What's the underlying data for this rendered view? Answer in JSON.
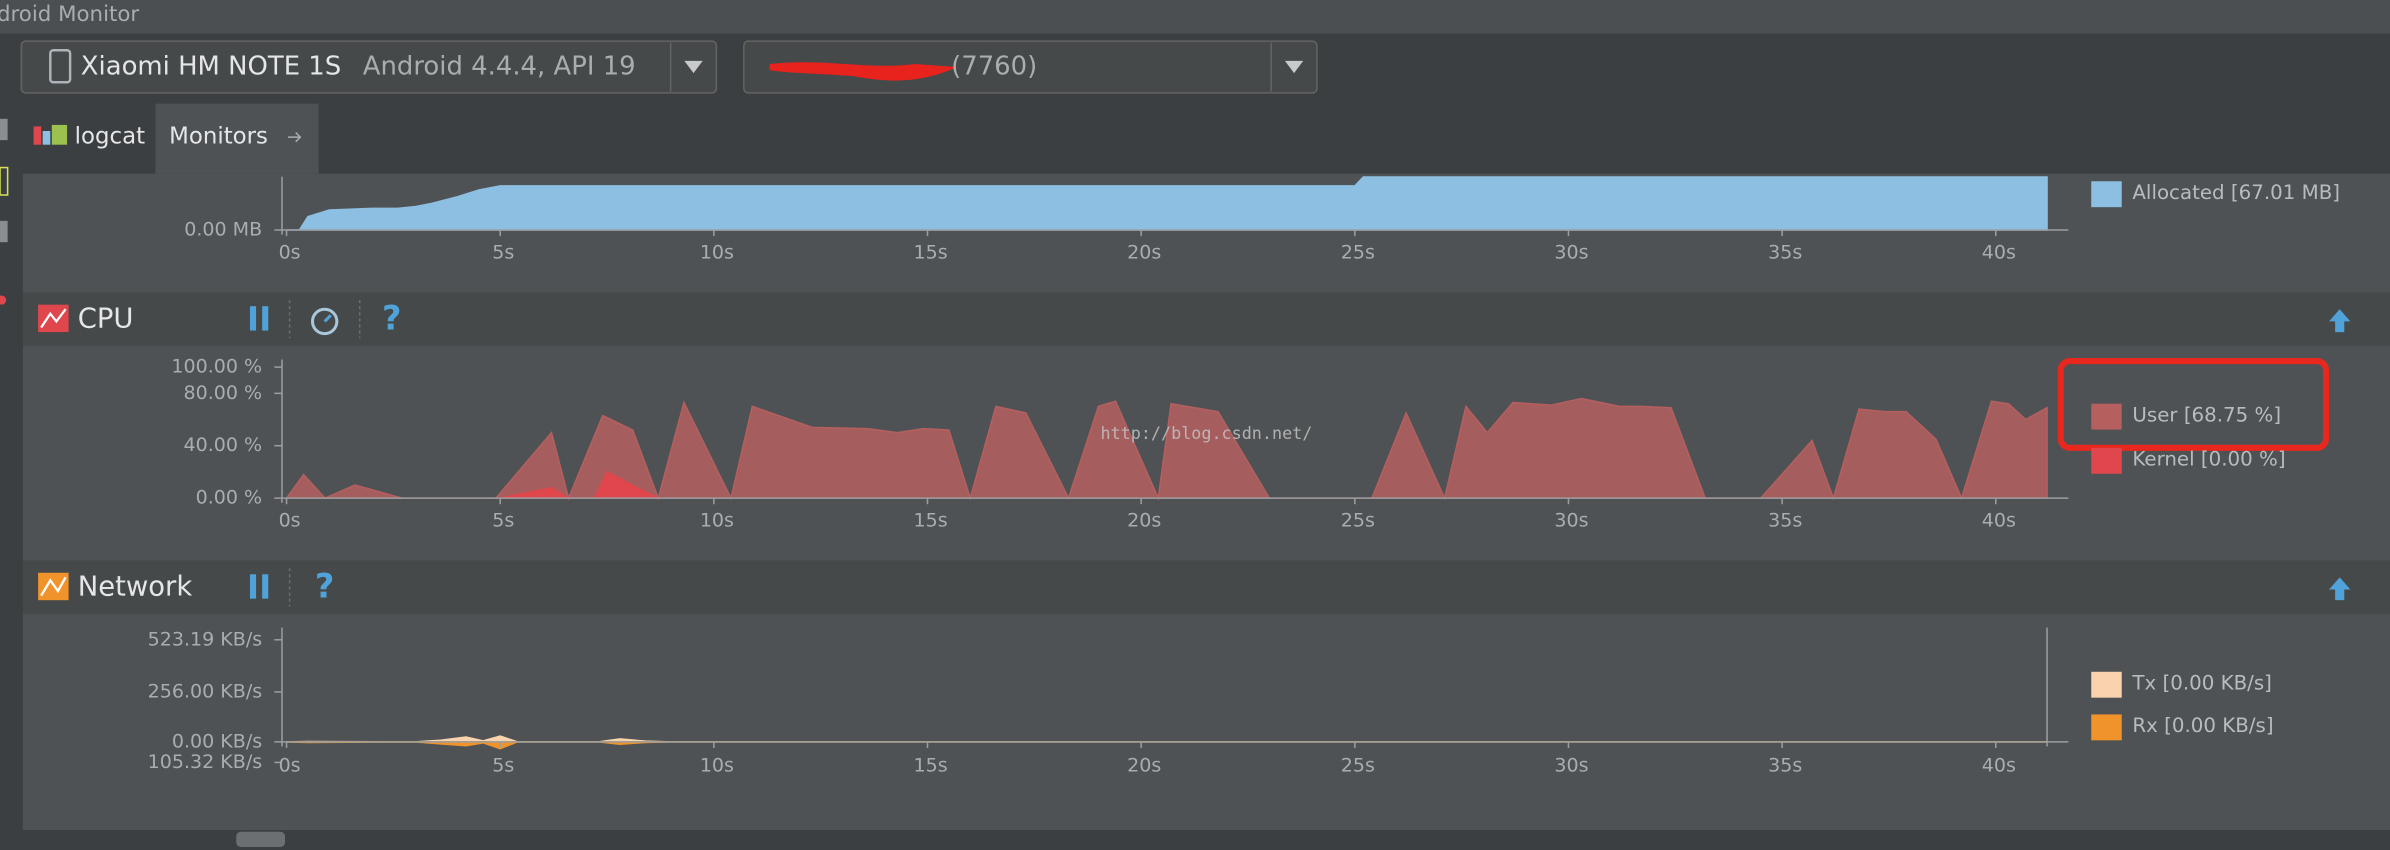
{
  "window_title": "droid Monitor",
  "device": "Xiaomi HM NOTE 1S",
  "device_detail": "Android 4.4.4, API 19",
  "process": "(7760)",
  "tabs": [
    "logcat",
    "Monitors"
  ],
  "help": "?",
  "watermark": "http://blog.csdn.net/",
  "chart_data": [
    {
      "type": "area",
      "xlim": [
        0,
        41.2
      ],
      "xticks": [
        {
          "value": 0,
          "label": "0s"
        },
        {
          "value": 5,
          "label": "5s"
        },
        {
          "value": 10,
          "label": "10s"
        },
        {
          "value": 15,
          "label": "15s"
        },
        {
          "value": 20,
          "label": "20s"
        },
        {
          "value": 25,
          "label": "25s"
        },
        {
          "value": 30,
          "label": "30s"
        },
        {
          "value": 35,
          "label": "35s"
        },
        {
          "value": 40,
          "label": "40s"
        }
      ],
      "ylim": [
        0,
        32
      ],
      "yticks": [
        {
          "value": 0,
          "label": "0.00 MB"
        }
      ],
      "series": [
        {
          "name": "Allocated [67.01 MB]",
          "color": "#8dbfe2",
          "x": [
            0,
            0.3,
            0.5,
            1,
            2,
            2.6,
            3,
            3.4,
            4,
            4.5,
            5,
            10,
            20,
            25,
            25.2,
            41.2
          ],
          "values": [
            0,
            0,
            8,
            12,
            13,
            13,
            14,
            16,
            20,
            24,
            26.5,
            26.5,
            26.5,
            26.5,
            31.8,
            31.8
          ]
        }
      ]
    },
    {
      "type": "area",
      "title": "CPU",
      "xlim": [
        0,
        41.2
      ],
      "xticks": [
        {
          "value": 0,
          "label": "0s"
        },
        {
          "value": 5,
          "label": "5s"
        },
        {
          "value": 10,
          "label": "10s"
        },
        {
          "value": 15,
          "label": "15s"
        },
        {
          "value": 20,
          "label": "20s"
        },
        {
          "value": 25,
          "label": "25s"
        },
        {
          "value": 30,
          "label": "30s"
        },
        {
          "value": 35,
          "label": "35s"
        },
        {
          "value": 40,
          "label": "40s"
        }
      ],
      "ylim": [
        0,
        100
      ],
      "yticks": [
        {
          "value": 100,
          "label": "100.00 %"
        },
        {
          "value": 80,
          "label": "80.00 %"
        },
        {
          "value": 40,
          "label": "40.00 %"
        },
        {
          "value": 0,
          "label": "0.00 %"
        }
      ],
      "series": [
        {
          "name": "User [68.75 %]",
          "color": "#b55f5f",
          "x": [
            0,
            0.4,
            0.9,
            1.6,
            2.7,
            4.9,
            6.2,
            6.6,
            7.4,
            8.1,
            8.7,
            9.3,
            10.4,
            10.9,
            12.3,
            13.6,
            14.3,
            14.9,
            15.5,
            16,
            16.6,
            17.3,
            18.3,
            19,
            19.4,
            20.4,
            20.7,
            21.8,
            23,
            25.4,
            26.2,
            27.1,
            27.6,
            28.1,
            28.7,
            29.6,
            30.3,
            31.2,
            31.7,
            32.4,
            33.2,
            34.5,
            35.7,
            36.2,
            36.8,
            37.4,
            37.9,
            38.6,
            39.2,
            39.9,
            40.3,
            40.7,
            41.2
          ],
          "values": [
            0,
            18,
            0,
            10,
            0,
            0,
            50,
            0,
            63,
            52,
            0,
            73,
            0,
            70,
            54,
            53,
            50,
            53,
            52,
            0,
            70,
            65,
            0,
            70,
            74,
            0,
            72,
            66,
            0,
            0,
            65,
            0,
            70,
            50,
            73,
            71,
            76,
            70,
            70,
            69,
            0,
            0,
            44,
            0,
            68,
            66,
            66,
            45,
            0,
            74,
            72,
            60,
            69
          ]
        },
        {
          "name": "Kernel [0.00 %]",
          "color": "#e0474c",
          "x": [
            5,
            6.2,
            6.6,
            7.2,
            7.5,
            8.2,
            8.7
          ],
          "values": [
            0,
            8,
            0,
            0,
            20,
            8,
            0
          ]
        }
      ]
    },
    {
      "type": "area",
      "title": "Network",
      "xlim": [
        0,
        41.2
      ],
      "xticks": [
        {
          "value": 0,
          "label": "0s"
        },
        {
          "value": 5,
          "label": "5s"
        },
        {
          "value": 10,
          "label": "10s"
        },
        {
          "value": 15,
          "label": "15s"
        },
        {
          "value": 20,
          "label": "20s"
        },
        {
          "value": 25,
          "label": "25s"
        },
        {
          "value": 30,
          "label": "30s"
        },
        {
          "value": 35,
          "label": "35s"
        },
        {
          "value": 40,
          "label": "40s"
        }
      ],
      "ylim": [
        -105.32,
        523.19
      ],
      "yticks": [
        {
          "value": 523.19,
          "label": "523.19 KB/s"
        },
        {
          "value": 256,
          "label": "256.00 KB/s"
        },
        {
          "value": 0,
          "label": "0.00 KB/s"
        },
        {
          "value": -105.32,
          "label": "105.32 KB/s"
        }
      ],
      "series": [
        {
          "name": "Tx [0.00 KB/s]",
          "color": "#f8d3ad",
          "x": [
            0,
            0.5,
            3,
            3.6,
            4.2,
            4.6,
            5,
            5.4,
            7.3,
            7.8,
            8.4,
            9,
            41.2
          ],
          "values": [
            0,
            2,
            0,
            8,
            25,
            5,
            30,
            0,
            0,
            15,
            4,
            0,
            0
          ]
        },
        {
          "name": "Rx [0.00 KB/s]",
          "color": "#f0932b",
          "x": [
            0,
            0.5,
            3,
            3.6,
            4.2,
            4.6,
            5,
            5.4,
            7.3,
            7.8,
            8.4,
            9,
            41.2
          ],
          "values": [
            0,
            -3,
            0,
            -10,
            -20,
            -5,
            -35,
            0,
            0,
            -12,
            -3,
            0,
            0
          ]
        }
      ]
    }
  ]
}
